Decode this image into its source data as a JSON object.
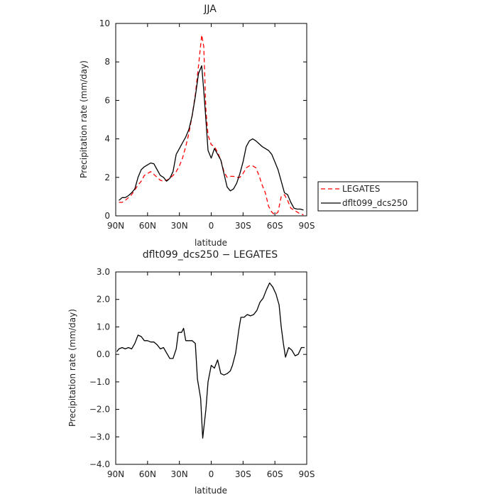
{
  "chart_data": [
    {
      "type": "line",
      "title": "JJA",
      "xlabel": "latitude",
      "ylabel": "Precipitation rate (mm/day)",
      "xlim": [
        -90,
        90
      ],
      "ylim": [
        0,
        10
      ],
      "x_ticks": [
        {
          "value": -90,
          "label": "90N"
        },
        {
          "value": -60,
          "label": "60N"
        },
        {
          "value": -30,
          "label": "30N"
        },
        {
          "value": 0,
          "label": "0"
        },
        {
          "value": 30,
          "label": "30S"
        },
        {
          "value": 60,
          "label": "60S"
        },
        {
          "value": 90,
          "label": "90S"
        }
      ],
      "y_ticks": [
        {
          "value": 0,
          "label": "0"
        },
        {
          "value": 2,
          "label": "2"
        },
        {
          "value": 4,
          "label": "4"
        },
        {
          "value": 6,
          "label": "6"
        },
        {
          "value": 8,
          "label": "8"
        },
        {
          "value": 10,
          "label": "10"
        }
      ],
      "legend_position": "right",
      "series": [
        {
          "name": "LEGATES",
          "color": "#ff0000",
          "style": "dashed",
          "points": [
            [
              -87,
              0.7
            ],
            [
              -84,
              0.7
            ],
            [
              -81,
              0.8
            ],
            [
              -78,
              0.95
            ],
            [
              -75,
              1.1
            ],
            [
              -72,
              1.35
            ],
            [
              -69,
              1.6
            ],
            [
              -66,
              1.8
            ],
            [
              -63,
              2.1
            ],
            [
              -60,
              2.2
            ],
            [
              -57,
              2.3
            ],
            [
              -54,
              2.15
            ],
            [
              -51,
              2.0
            ],
            [
              -48,
              1.85
            ],
            [
              -45,
              1.8
            ],
            [
              -42,
              1.85
            ],
            [
              -39,
              1.95
            ],
            [
              -36,
              2.1
            ],
            [
              -33,
              2.3
            ],
            [
              -30,
              2.6
            ],
            [
              -27,
              3.0
            ],
            [
              -24,
              3.6
            ],
            [
              -21,
              4.3
            ],
            [
              -18,
              5.2
            ],
            [
              -15,
              6.3
            ],
            [
              -12,
              7.8
            ],
            [
              -9,
              9.4
            ],
            [
              -7,
              8.8
            ],
            [
              -5,
              5.5
            ],
            [
              -3,
              4.2
            ],
            [
              0,
              3.7
            ],
            [
              3,
              3.6
            ],
            [
              6,
              3.3
            ],
            [
              9,
              2.9
            ],
            [
              12,
              2.3
            ],
            [
              15,
              2.0
            ],
            [
              18,
              2.05
            ],
            [
              21,
              2.05
            ],
            [
              24,
              2.0
            ],
            [
              27,
              2.0
            ],
            [
              30,
              2.2
            ],
            [
              33,
              2.5
            ],
            [
              36,
              2.6
            ],
            [
              39,
              2.6
            ],
            [
              42,
              2.5
            ],
            [
              45,
              2.1
            ],
            [
              48,
              1.6
            ],
            [
              51,
              1.2
            ],
            [
              54,
              0.5
            ],
            [
              57,
              0.2
            ],
            [
              60,
              0.05
            ],
            [
              63,
              0.2
            ],
            [
              66,
              1.0
            ],
            [
              69,
              1.1
            ],
            [
              72,
              0.8
            ],
            [
              75,
              0.4
            ],
            [
              78,
              0.3
            ],
            [
              81,
              0.2
            ],
            [
              84,
              0.1
            ],
            [
              87,
              0.05
            ]
          ]
        },
        {
          "name": "dflt099_dcs250",
          "color": "#000000",
          "style": "solid",
          "points": [
            [
              -87,
              0.8
            ],
            [
              -84,
              0.95
            ],
            [
              -81,
              0.95
            ],
            [
              -78,
              1.05
            ],
            [
              -75,
              1.2
            ],
            [
              -72,
              1.4
            ],
            [
              -69,
              2.0
            ],
            [
              -66,
              2.4
            ],
            [
              -63,
              2.55
            ],
            [
              -60,
              2.65
            ],
            [
              -57,
              2.75
            ],
            [
              -54,
              2.7
            ],
            [
              -51,
              2.4
            ],
            [
              -48,
              2.1
            ],
            [
              -45,
              2.0
            ],
            [
              -42,
              1.8
            ],
            [
              -39,
              1.95
            ],
            [
              -36,
              2.3
            ],
            [
              -33,
              3.2
            ],
            [
              -30,
              3.5
            ],
            [
              -27,
              3.8
            ],
            [
              -24,
              4.1
            ],
            [
              -21,
              4.5
            ],
            [
              -18,
              5.2
            ],
            [
              -15,
              6.2
            ],
            [
              -12,
              7.4
            ],
            [
              -9,
              7.8
            ],
            [
              -7,
              6.5
            ],
            [
              -5,
              5.0
            ],
            [
              -3,
              3.4
            ],
            [
              0,
              3.0
            ],
            [
              3,
              3.5
            ],
            [
              6,
              3.2
            ],
            [
              9,
              2.9
            ],
            [
              12,
              2.2
            ],
            [
              15,
              1.5
            ],
            [
              18,
              1.3
            ],
            [
              21,
              1.4
            ],
            [
              24,
              1.7
            ],
            [
              27,
              2.2
            ],
            [
              30,
              2.8
            ],
            [
              33,
              3.6
            ],
            [
              36,
              3.9
            ],
            [
              39,
              4.0
            ],
            [
              42,
              3.9
            ],
            [
              45,
              3.75
            ],
            [
              48,
              3.6
            ],
            [
              51,
              3.5
            ],
            [
              54,
              3.4
            ],
            [
              57,
              3.2
            ],
            [
              60,
              2.8
            ],
            [
              63,
              2.4
            ],
            [
              66,
              1.8
            ],
            [
              69,
              1.2
            ],
            [
              72,
              1.1
            ],
            [
              75,
              0.7
            ],
            [
              78,
              0.4
            ],
            [
              81,
              0.35
            ],
            [
              84,
              0.35
            ],
            [
              87,
              0.3
            ]
          ]
        }
      ]
    },
    {
      "type": "line",
      "title": "dflt099_dcs250 − LEGATES",
      "xlabel": "latitude",
      "ylabel": "Precipitation rate (mm/day)",
      "xlim": [
        -90,
        90
      ],
      "ylim": [
        -4,
        3
      ],
      "x_ticks": [
        {
          "value": -90,
          "label": "90N"
        },
        {
          "value": -60,
          "label": "60N"
        },
        {
          "value": -30,
          "label": "30N"
        },
        {
          "value": 0,
          "label": "0"
        },
        {
          "value": 30,
          "label": "30S"
        },
        {
          "value": 60,
          "label": "60S"
        },
        {
          "value": 90,
          "label": "90S"
        }
      ],
      "y_ticks": [
        {
          "value": -4,
          "label": "−4.0"
        },
        {
          "value": -3,
          "label": "−3.0"
        },
        {
          "value": -2,
          "label": "−2.0"
        },
        {
          "value": -1,
          "label": "−1.0"
        },
        {
          "value": 0,
          "label": "0.0"
        },
        {
          "value": 1,
          "label": "1.0"
        },
        {
          "value": 2,
          "label": "2.0"
        },
        {
          "value": 3,
          "label": "3.0"
        }
      ],
      "series": [
        {
          "color": "#000000",
          "style": "solid",
          "points": [
            [
              -89,
              0.1
            ],
            [
              -87,
              0.2
            ],
            [
              -84,
              0.25
            ],
            [
              -81,
              0.2
            ],
            [
              -78,
              0.25
            ],
            [
              -75,
              0.2
            ],
            [
              -72,
              0.4
            ],
            [
              -69,
              0.7
            ],
            [
              -66,
              0.65
            ],
            [
              -63,
              0.5
            ],
            [
              -60,
              0.5
            ],
            [
              -57,
              0.45
            ],
            [
              -54,
              0.45
            ],
            [
              -51,
              0.35
            ],
            [
              -48,
              0.2
            ],
            [
              -45,
              0.25
            ],
            [
              -42,
              0.05
            ],
            [
              -39,
              -0.15
            ],
            [
              -36,
              -0.15
            ],
            [
              -33,
              0.2
            ],
            [
              -31,
              0.8
            ],
            [
              -28,
              0.8
            ],
            [
              -26,
              0.95
            ],
            [
              -24,
              0.5
            ],
            [
              -21,
              0.5
            ],
            [
              -18,
              0.5
            ],
            [
              -15,
              0.4
            ],
            [
              -13,
              -0.9
            ],
            [
              -10,
              -1.6
            ],
            [
              -8,
              -3.05
            ],
            [
              -5,
              -2.0
            ],
            [
              -3,
              -1.0
            ],
            [
              0,
              -0.4
            ],
            [
              3,
              -0.5
            ],
            [
              6,
              -0.2
            ],
            [
              9,
              -0.7
            ],
            [
              12,
              -0.75
            ],
            [
              15,
              -0.7
            ],
            [
              18,
              -0.6
            ],
            [
              20,
              -0.4
            ],
            [
              23,
              0.05
            ],
            [
              26,
              0.9
            ],
            [
              28,
              1.35
            ],
            [
              31,
              1.35
            ],
            [
              34,
              1.45
            ],
            [
              37,
              1.4
            ],
            [
              40,
              1.45
            ],
            [
              43,
              1.6
            ],
            [
              46,
              1.9
            ],
            [
              49,
              2.05
            ],
            [
              52,
              2.35
            ],
            [
              55,
              2.6
            ],
            [
              58,
              2.45
            ],
            [
              61,
              2.2
            ],
            [
              64,
              1.8
            ],
            [
              66,
              1.0
            ],
            [
              68,
              0.4
            ],
            [
              70,
              -0.1
            ],
            [
              73,
              0.25
            ],
            [
              76,
              0.15
            ],
            [
              79,
              -0.05
            ],
            [
              82,
              0.0
            ],
            [
              85,
              0.25
            ],
            [
              88,
              0.25
            ]
          ]
        }
      ]
    }
  ]
}
